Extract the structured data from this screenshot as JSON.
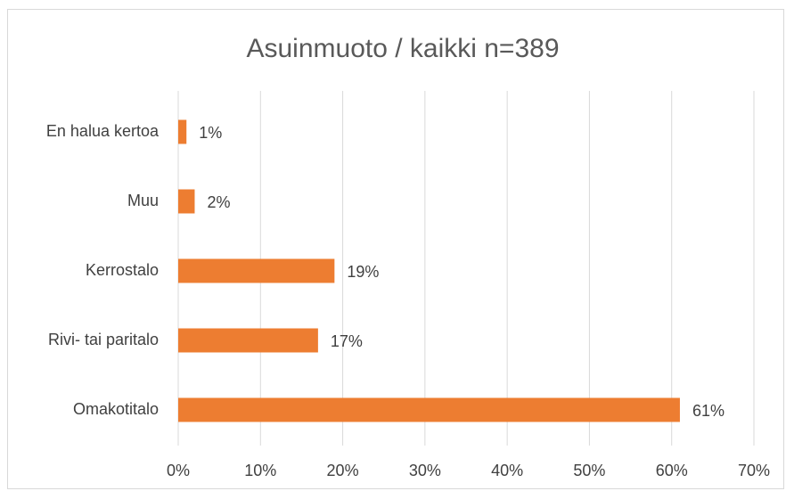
{
  "chart_data": {
    "type": "hbar",
    "title": "Asuinmuoto / kaikki n=389",
    "categories": [
      "En halua kertoa",
      "Muu",
      "Kerrostalo",
      "Rivi- tai paritalo",
      "Omakotitalo"
    ],
    "values": [
      1,
      2,
      19,
      17,
      61
    ],
    "value_labels": [
      "1%",
      "2%",
      "19%",
      "17%",
      "61%"
    ],
    "color": "#ed7d31",
    "xlim": [
      0,
      70
    ],
    "xticks": [
      {
        "value": 0,
        "label": "0%"
      },
      {
        "value": 10,
        "label": "10%"
      },
      {
        "value": 20,
        "label": "20%"
      },
      {
        "value": 30,
        "label": "30%"
      },
      {
        "value": 40,
        "label": "40%"
      },
      {
        "value": 50,
        "label": "50%"
      },
      {
        "value": 60,
        "label": "60%"
      },
      {
        "value": 70,
        "label": "70%"
      }
    ],
    "grid": true
  }
}
